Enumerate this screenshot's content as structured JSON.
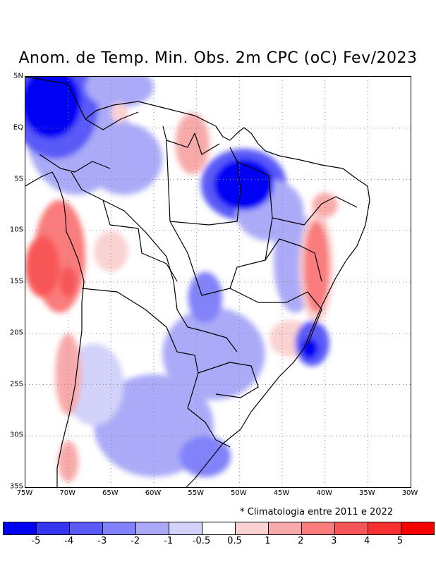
{
  "title": "Anom. de Temp. Min. Obs. 2m CPC (oC) Fev/2023",
  "footnote": "* Climatologia entre 2011 e 2022",
  "axes": {
    "y_ticks": [
      "5N",
      "EQ",
      "5S",
      "10S",
      "15S",
      "20S",
      "25S",
      "30S",
      "35S"
    ],
    "x_ticks": [
      "75W",
      "70W",
      "65W",
      "60W",
      "55W",
      "50W",
      "45W",
      "40W",
      "35W",
      "30W"
    ],
    "lat_range": [
      5,
      -35
    ],
    "lon_range": [
      -75,
      -30
    ]
  },
  "colorbar": {
    "colors": [
      "#0000f5",
      "#3636f0",
      "#5a5af8",
      "#8282fa",
      "#aaaaf8",
      "#d2d2fa",
      "#ffffff",
      "#fad2d2",
      "#f8aaaa",
      "#fa7c7c",
      "#f85656",
      "#f83030",
      "#fa0000"
    ],
    "labels": [
      "-5",
      "-4",
      "-3",
      "-2",
      "-1",
      "-0.5",
      "0.5",
      "1",
      "2",
      "3",
      "4",
      "5"
    ]
  },
  "anomaly_blobs": [
    {
      "lon": -72.0,
      "lat": 2.5,
      "rx": 3.5,
      "ry": 3.5,
      "level": 0
    },
    {
      "lon": -71.5,
      "lat": 2.0,
      "rx": 5.0,
      "ry": 5.0,
      "level": 2
    },
    {
      "lon": -69.0,
      "lat": 0.0,
      "rx": 6.0,
      "ry": 6.5,
      "level": 4
    },
    {
      "lon": -64.0,
      "lat": 4.0,
      "rx": 4.0,
      "ry": 2.0,
      "level": 4
    },
    {
      "lon": -63.5,
      "lat": -3.0,
      "rx": 4.5,
      "ry": 3.5,
      "level": 4
    },
    {
      "lon": -49.5,
      "lat": -5.5,
      "rx": 3.5,
      "ry": 2.5,
      "level": 0
    },
    {
      "lon": -49.5,
      "lat": -5.5,
      "rx": 5.0,
      "ry": 3.5,
      "level": 2
    },
    {
      "lon": -46.5,
      "lat": -8.0,
      "rx": 4.0,
      "ry": 3.0,
      "level": 4
    },
    {
      "lon": -43.5,
      "lat": -13.0,
      "rx": 2.5,
      "ry": 5.0,
      "level": 4
    },
    {
      "lon": -54.0,
      "lat": -16.5,
      "rx": 2.0,
      "ry": 2.5,
      "level": 3
    },
    {
      "lon": -41.8,
      "lat": -21.5,
      "rx": 1.0,
      "ry": 1.0,
      "level": 0
    },
    {
      "lon": -41.5,
      "lat": -21.0,
      "rx": 2.0,
      "ry": 2.2,
      "level": 2
    },
    {
      "lon": -53.0,
      "lat": -22.0,
      "rx": 6.0,
      "ry": 4.5,
      "level": 4
    },
    {
      "lon": -60.0,
      "lat": -29.0,
      "rx": 7.0,
      "ry": 5.0,
      "level": 4
    },
    {
      "lon": -54.0,
      "lat": -32.0,
      "rx": 3.0,
      "ry": 2.0,
      "level": 3
    },
    {
      "lon": -67.0,
      "lat": -25.0,
      "rx": 3.5,
      "ry": 4.0,
      "level": 5
    },
    {
      "lon": -71.0,
      "lat": -12.5,
      "rx": 3.0,
      "ry": 5.5,
      "level": 9
    },
    {
      "lon": -73.0,
      "lat": -13.5,
      "rx": 2.0,
      "ry": 3.0,
      "level": 10
    },
    {
      "lon": -70.0,
      "lat": -15.0,
      "rx": 1.0,
      "ry": 1.5,
      "level": 10
    },
    {
      "lon": -41.0,
      "lat": -13.5,
      "rx": 1.5,
      "ry": 4.5,
      "level": 9
    },
    {
      "lon": -41.0,
      "lat": -13.5,
      "rx": 2.0,
      "ry": 5.5,
      "level": 7
    },
    {
      "lon": -55.5,
      "lat": -1.5,
      "rx": 2.0,
      "ry": 3.0,
      "level": 8
    },
    {
      "lon": -70.0,
      "lat": -24.0,
      "rx": 1.5,
      "ry": 4.0,
      "level": 8
    },
    {
      "lon": -65.0,
      "lat": -12.0,
      "rx": 2.0,
      "ry": 2.0,
      "level": 7
    },
    {
      "lon": -44.0,
      "lat": -20.5,
      "rx": 2.5,
      "ry": 1.8,
      "level": 7
    },
    {
      "lon": -40.0,
      "lat": -7.5,
      "rx": 1.5,
      "ry": 1.2,
      "level": 8
    },
    {
      "lon": -70.0,
      "lat": -32.5,
      "rx": 1.2,
      "ry": 2.0,
      "level": 8
    },
    {
      "lon": -64.0,
      "lat": 1.5,
      "rx": 1.0,
      "ry": 1.0,
      "level": 7
    }
  ]
}
